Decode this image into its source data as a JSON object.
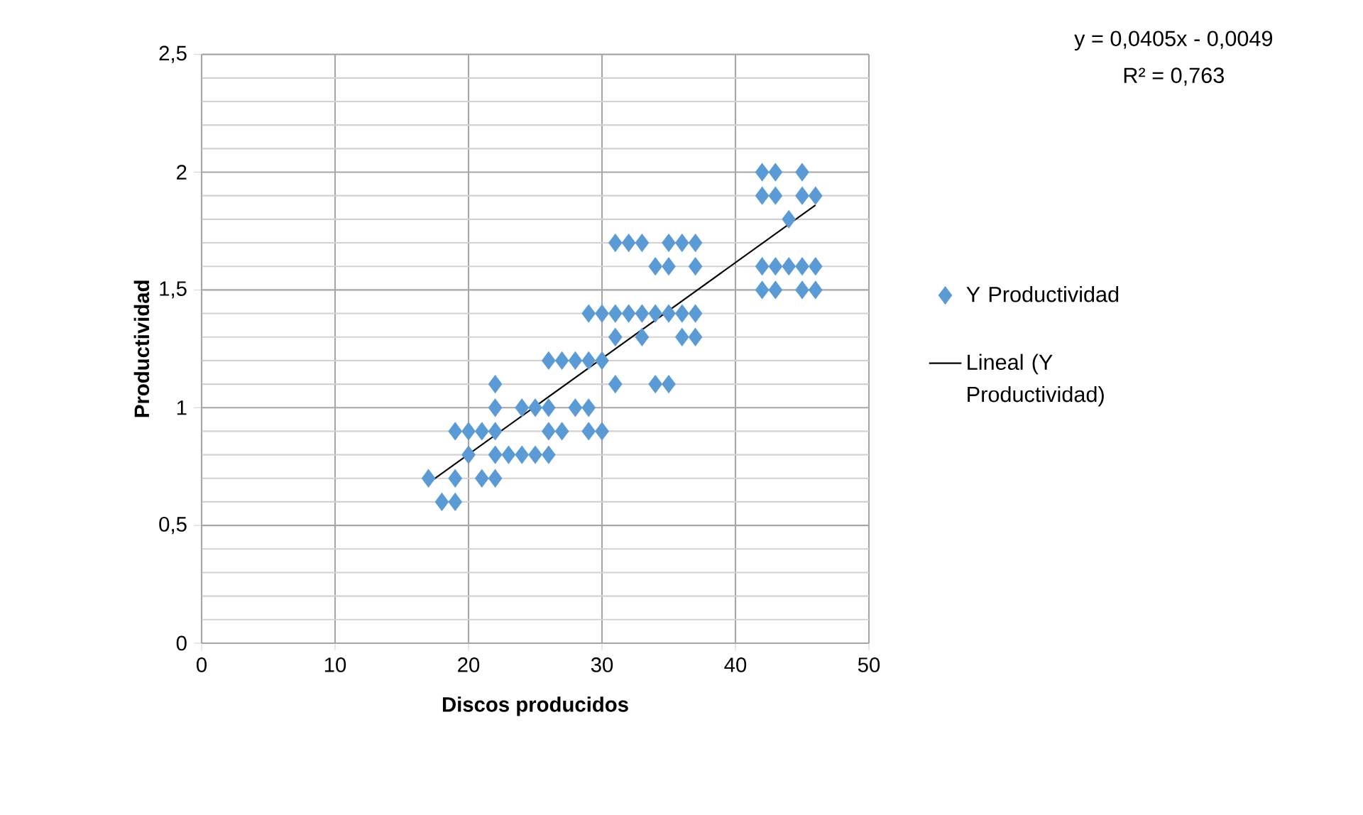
{
  "chart_data": {
    "type": "scatter",
    "xlabel": "Discos producidos",
    "ylabel": "Productividad",
    "xlim": [
      0,
      50
    ],
    "ylim": [
      0,
      2.5
    ],
    "xticks": [
      0,
      10,
      20,
      30,
      40,
      50
    ],
    "yticks": [
      0,
      {
        "value": 0.5,
        "label": "0,5"
      },
      1,
      {
        "value": 1.5,
        "label": "1,5"
      },
      2,
      {
        "value": 2.5,
        "label": "2,5"
      }
    ],
    "grid": true,
    "legend": "right",
    "marker": "diamond",
    "annotations": [
      "y = 0,0405x - 0,0049",
      "R² = 0,763"
    ],
    "series": [
      {
        "name": "Y Productividad",
        "color": "#5b9bd5",
        "x": [
          18,
          19,
          17,
          19,
          21,
          22,
          20,
          22,
          23,
          24,
          25,
          26,
          19,
          20,
          21,
          22,
          26,
          27,
          29,
          30,
          22,
          24,
          25,
          26,
          28,
          29,
          22,
          31,
          34,
          35,
          26,
          27,
          28,
          29,
          30,
          31,
          33,
          36,
          37,
          29,
          30,
          31,
          32,
          33,
          34,
          35,
          36,
          37,
          42,
          43,
          45,
          46,
          34,
          35,
          37,
          42,
          43,
          44,
          45,
          46,
          31,
          32,
          33,
          35,
          36,
          37,
          44,
          42,
          43,
          45,
          46,
          42,
          43,
          45
        ],
        "values": [
          0.6,
          0.6,
          0.7,
          0.7,
          0.7,
          0.7,
          0.8,
          0.8,
          0.8,
          0.8,
          0.8,
          0.8,
          0.9,
          0.9,
          0.9,
          0.9,
          0.9,
          0.9,
          0.9,
          0.9,
          1.0,
          1.0,
          1.0,
          1.0,
          1.0,
          1.0,
          1.1,
          1.1,
          1.1,
          1.1,
          1.2,
          1.2,
          1.2,
          1.2,
          1.2,
          1.3,
          1.3,
          1.3,
          1.3,
          1.4,
          1.4,
          1.4,
          1.4,
          1.4,
          1.4,
          1.4,
          1.4,
          1.4,
          1.5,
          1.5,
          1.5,
          1.5,
          1.6,
          1.6,
          1.6,
          1.6,
          1.6,
          1.6,
          1.6,
          1.6,
          1.7,
          1.7,
          1.7,
          1.7,
          1.7,
          1.7,
          1.8,
          1.9,
          1.9,
          1.9,
          1.9,
          2.0,
          2.0,
          2.0
        ]
      },
      {
        "name": "Lineal (Y Productividad)",
        "color": "#000000",
        "type": "line",
        "marker": "none",
        "x": [
          17,
          46
        ],
        "values": [
          0.68,
          1.86
        ]
      }
    ]
  }
}
